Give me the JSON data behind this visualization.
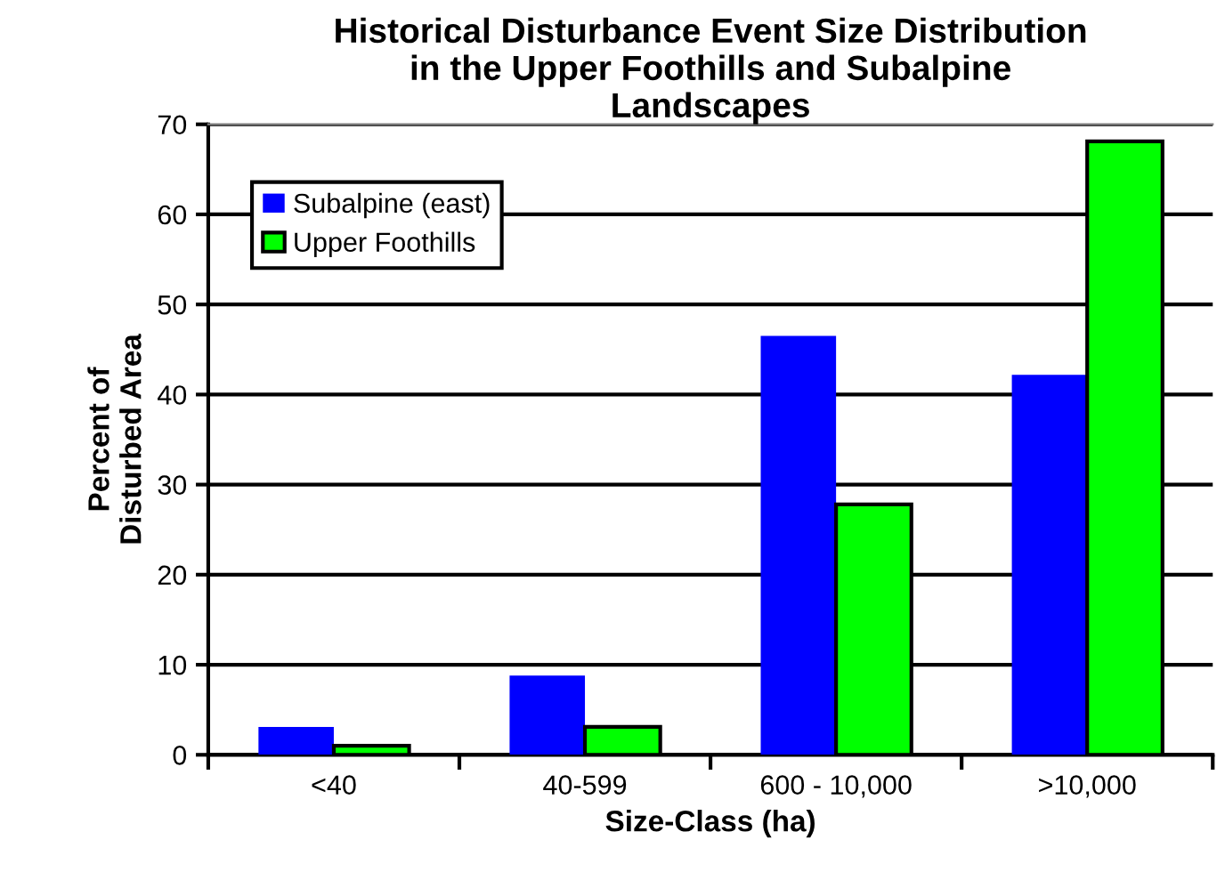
{
  "chart_data": {
    "type": "bar",
    "title": "Historical Disturbance Event Size Distribution\nin the Upper Foothills and Subalpine\nLandscapes",
    "xlabel": "Size-Class (ha)",
    "ylabel": "Percent of\nDisturbed Area",
    "categories": [
      "<40",
      "40-599",
      "600 - 10,000",
      ">10,000"
    ],
    "series": [
      {
        "name": "Subalpine (east)",
        "color": "#0000ff",
        "values": [
          3.1,
          8.8,
          46.5,
          42.2
        ]
      },
      {
        "name": "Upper Foothills",
        "color": "#00ff00",
        "values": [
          1.0,
          3.1,
          27.8,
          68.1
        ]
      }
    ],
    "ylim": [
      0,
      70
    ],
    "yticks": [
      0,
      10,
      20,
      30,
      40,
      50,
      60,
      70
    ],
    "grid": "y",
    "legend": "top left"
  }
}
